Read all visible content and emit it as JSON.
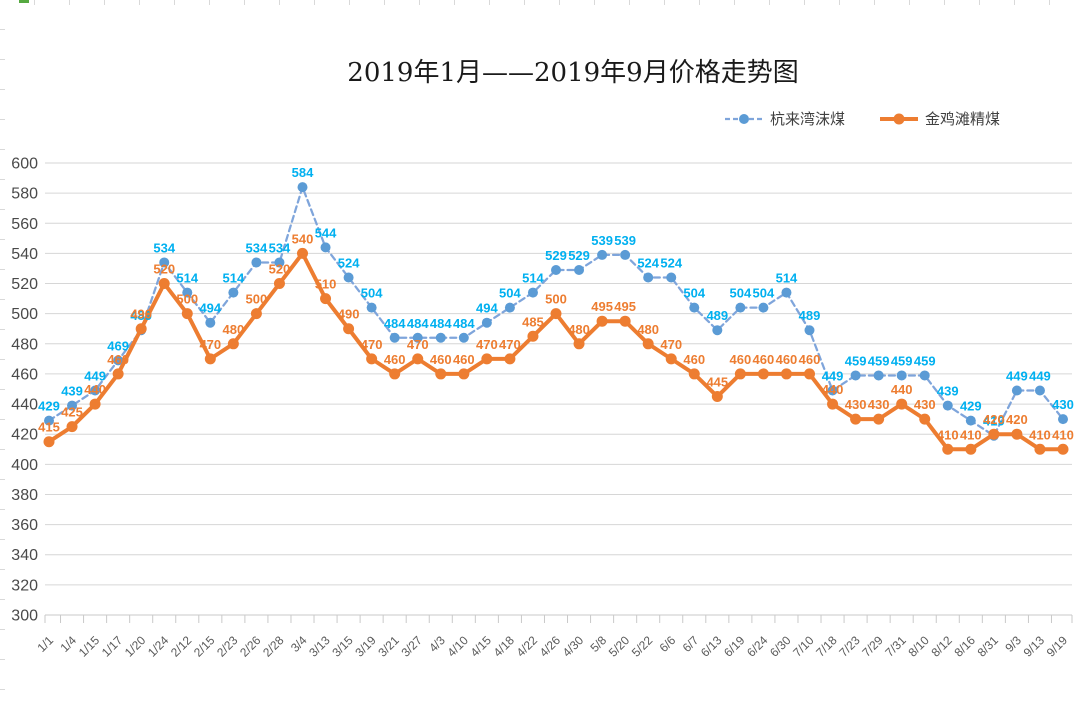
{
  "title": "2019年1月——2019年9月价格走势图",
  "chart_data": {
    "type": "line",
    "title": "2019年1月——2019年9月价格走势图",
    "categories": [
      "1/1",
      "1/4",
      "1/15",
      "1/17",
      "1/20",
      "1/24",
      "2/12",
      "2/15",
      "2/23",
      "2/26",
      "2/28",
      "3/4",
      "3/13",
      "3/15",
      "3/19",
      "3/21",
      "3/27",
      "4/3",
      "4/10",
      "4/15",
      "4/18",
      "4/22",
      "4/26",
      "4/30",
      "5/8",
      "5/20",
      "5/22",
      "6/6",
      "6/7",
      "6/13",
      "6/19",
      "6/24",
      "6/30",
      "7/10",
      "7/18",
      "7/23",
      "7/29",
      "7/31",
      "8/10",
      "8/12",
      "8/16",
      "8/31",
      "9/3",
      "9/13",
      "9/19"
    ],
    "series": [
      {
        "name": "杭来湾沫煤",
        "values": [
          429,
          439,
          449,
          469,
          489,
          534,
          514,
          494,
          514,
          534,
          534,
          584,
          544,
          524,
          504,
          484,
          484,
          484,
          484,
          494,
          504,
          514,
          529,
          529,
          539,
          539,
          524,
          524,
          504,
          489,
          504,
          504,
          514,
          489,
          449,
          459,
          459,
          459,
          459,
          439,
          429,
          419,
          449,
          449,
          430
        ],
        "color": "#5B9BD5",
        "line_color": "#7FA5DB",
        "label_color": "#00B0F0",
        "line_style": "dashed"
      },
      {
        "name": "金鸡滩精煤",
        "values": [
          415,
          425,
          440,
          460,
          490,
          520,
          500,
          470,
          480,
          500,
          520,
          540,
          510,
          490,
          470,
          460,
          470,
          460,
          460,
          470,
          470,
          485,
          500,
          480,
          495,
          495,
          480,
          470,
          460,
          445,
          460,
          460,
          460,
          460,
          440,
          430,
          430,
          440,
          430,
          410,
          410,
          420,
          420,
          410,
          410
        ],
        "color": "#ED7D31",
        "line_color": "#ED7D31",
        "label_color": "#ED7D31",
        "line_style": "solid"
      }
    ],
    "ylim": [
      300,
      600
    ],
    "yticks": [
      600,
      580,
      560,
      540,
      520,
      500,
      480,
      460,
      440,
      420,
      400,
      380,
      360,
      340,
      320,
      300
    ],
    "grid": true,
    "legend_position": "top-right",
    "axis_text_color": "#595959",
    "gridline_color": "#D6D6D6",
    "axis_line_color": "#C9C9C9"
  },
  "artifacts": {
    "selection_green": "#56A941",
    "edge_tick_color": "#D9D9D9"
  }
}
